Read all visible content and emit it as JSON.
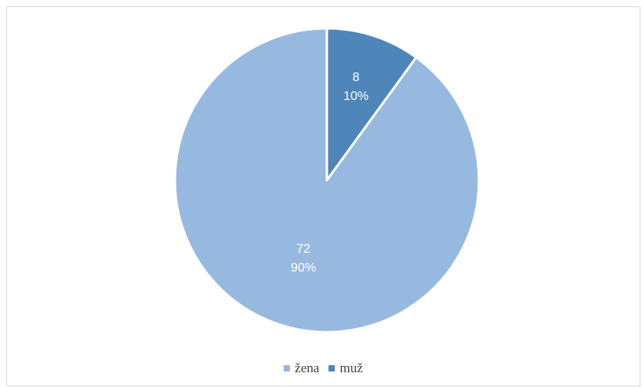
{
  "chart_data": {
    "type": "pie",
    "title": "",
    "start_angle_deg": 0,
    "direction": "clockwise",
    "slices": [
      {
        "name": "muž",
        "value": 8,
        "percent_label": "10%",
        "color": "#4f86ba"
      },
      {
        "name": "žena",
        "value": 72,
        "percent_label": "90%",
        "color": "#98b9df"
      }
    ],
    "legend": {
      "placement": "bottom",
      "order": [
        "žena",
        "muž"
      ]
    },
    "colors": {
      "border": "#d9d9d9",
      "label_text": "#ffffff",
      "legend_text": "#404040",
      "slice_separator": "#ffffff"
    }
  }
}
